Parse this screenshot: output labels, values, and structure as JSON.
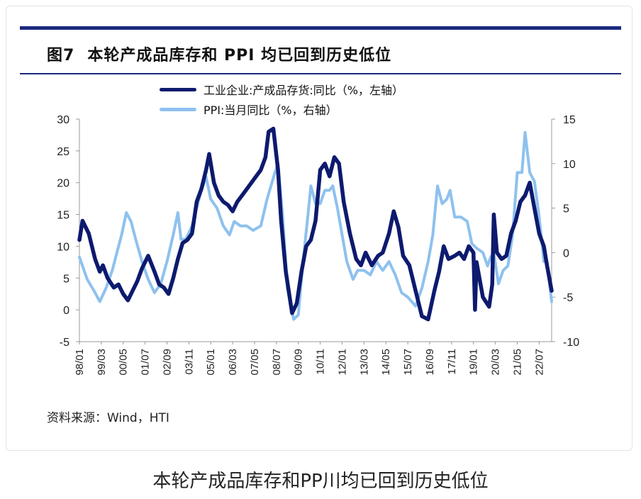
{
  "figure": {
    "number": "图7",
    "title": "本轮产成品库存和 PPI 均已回到历史低位",
    "source": "资料来源：Wind，HTI"
  },
  "caption": "本轮产成品库存和PP川均已回到历史低位",
  "colors": {
    "inventory": "#0d1a6e",
    "ppi": "#8ec1ee",
    "rule": "#1b2a7e"
  },
  "chart_data": {
    "type": "line",
    "x_tick_labels": [
      "98/01",
      "99/03",
      "00/05",
      "01/07",
      "02/09",
      "03/11",
      "05/01",
      "06/03",
      "07/05",
      "08/07",
      "09/09",
      "10/11",
      "12/01",
      "13/03",
      "14/05",
      "15/07",
      "16/09",
      "17/11",
      "19/01",
      "20/03",
      "21/05",
      "22/07"
    ],
    "x_range": [
      "1998-01",
      "2023-03"
    ],
    "y_left": {
      "ticks": [
        30,
        25,
        20,
        15,
        10,
        5,
        0,
        -5
      ],
      "range": [
        -5,
        30
      ]
    },
    "y_right": {
      "ticks": [
        15,
        10,
        5,
        0,
        -5,
        -10
      ],
      "range": [
        -10,
        15
      ]
    },
    "series": [
      {
        "name": "工业企业:产成品存货:同比（%，左轴）",
        "axis": "left",
        "points": [
          [
            "1998-01",
            11
          ],
          [
            "1998-03",
            14
          ],
          [
            "1998-07",
            12
          ],
          [
            "1998-11",
            8
          ],
          [
            "1999-02",
            6
          ],
          [
            "1999-04",
            7
          ],
          [
            "1999-07",
            5
          ],
          [
            "1999-11",
            3.5
          ],
          [
            "2000-02",
            4
          ],
          [
            "2000-05",
            2.5
          ],
          [
            "2000-08",
            1.5
          ],
          [
            "2000-11",
            3
          ],
          [
            "2001-02",
            4.5
          ],
          [
            "2001-05",
            6.5
          ],
          [
            "2001-09",
            8.5
          ],
          [
            "2002-01",
            6
          ],
          [
            "2002-04",
            4
          ],
          [
            "2002-07",
            3.5
          ],
          [
            "2002-10",
            2.5
          ],
          [
            "2003-01",
            5
          ],
          [
            "2003-04",
            8
          ],
          [
            "2003-07",
            10.5
          ],
          [
            "2003-10",
            11
          ],
          [
            "2004-01",
            12
          ],
          [
            "2004-04",
            17
          ],
          [
            "2004-07",
            19
          ],
          [
            "2004-10",
            22
          ],
          [
            "2004-12",
            24.5
          ],
          [
            "2005-03",
            20
          ],
          [
            "2005-06",
            18
          ],
          [
            "2005-09",
            17
          ],
          [
            "2005-12",
            16.5
          ],
          [
            "2006-03",
            15.5
          ],
          [
            "2006-06",
            17
          ],
          [
            "2006-09",
            18
          ],
          [
            "2006-12",
            19
          ],
          [
            "2007-03",
            20
          ],
          [
            "2007-06",
            21
          ],
          [
            "2007-09",
            22
          ],
          [
            "2007-12",
            24
          ],
          [
            "2008-02",
            28
          ],
          [
            "2008-05",
            28.5
          ],
          [
            "2008-08",
            22
          ],
          [
            "2008-10",
            14
          ],
          [
            "2009-01",
            6
          ],
          [
            "2009-05",
            -0.5
          ],
          [
            "2009-08",
            1
          ],
          [
            "2009-11",
            6
          ],
          [
            "2010-02",
            10
          ],
          [
            "2010-05",
            11
          ],
          [
            "2010-08",
            14
          ],
          [
            "2010-11",
            22
          ],
          [
            "2011-02",
            23
          ],
          [
            "2011-05",
            21
          ],
          [
            "2011-08",
            24
          ],
          [
            "2011-11",
            23
          ],
          [
            "2012-02",
            17
          ],
          [
            "2012-06",
            12
          ],
          [
            "2012-10",
            8
          ],
          [
            "2013-01",
            7
          ],
          [
            "2013-04",
            9
          ],
          [
            "2013-08",
            7
          ],
          [
            "2013-12",
            8.5
          ],
          [
            "2014-03",
            9
          ],
          [
            "2014-07",
            12
          ],
          [
            "2014-10",
            15.5
          ],
          [
            "2015-01",
            13
          ],
          [
            "2015-04",
            8.5
          ],
          [
            "2015-08",
            7
          ],
          [
            "2015-12",
            3
          ],
          [
            "2016-04",
            -1
          ],
          [
            "2016-08",
            -1.5
          ],
          [
            "2016-12",
            3
          ],
          [
            "2017-03",
            6
          ],
          [
            "2017-06",
            10
          ],
          [
            "2017-09",
            8
          ],
          [
            "2018-01",
            8.5
          ],
          [
            "2018-04",
            9
          ],
          [
            "2018-07",
            8
          ],
          [
            "2018-10",
            10
          ],
          [
            "2019-01",
            9
          ],
          [
            "2019-02",
            0
          ],
          [
            "2019-03",
            7.5
          ],
          [
            "2019-07",
            2
          ],
          [
            "2019-11",
            0.5
          ],
          [
            "2020-01",
            4
          ],
          [
            "2020-02",
            15
          ],
          [
            "2020-04",
            9
          ],
          [
            "2020-07",
            8
          ],
          [
            "2020-10",
            8.5
          ],
          [
            "2021-01",
            12
          ],
          [
            "2021-04",
            14
          ],
          [
            "2021-07",
            17
          ],
          [
            "2021-10",
            18
          ],
          [
            "2022-01",
            20
          ],
          [
            "2022-04",
            16
          ],
          [
            "2022-07",
            12
          ],
          [
            "2022-10",
            10
          ],
          [
            "2022-12",
            7
          ],
          [
            "2023-03",
            3
          ]
        ]
      },
      {
        "name": "PPI:当月同比（%，右轴）",
        "axis": "right",
        "points": [
          [
            "1998-01",
            -0.5
          ],
          [
            "1998-06",
            -3
          ],
          [
            "1998-11",
            -4.5
          ],
          [
            "1999-02",
            -5.5
          ],
          [
            "1999-06",
            -4
          ],
          [
            "1999-10",
            -2
          ],
          [
            "2000-01",
            0
          ],
          [
            "2000-04",
            2
          ],
          [
            "2000-07",
            4.5
          ],
          [
            "2000-10",
            3.5
          ],
          [
            "2001-01",
            1.5
          ],
          [
            "2001-05",
            -1
          ],
          [
            "2001-09",
            -3
          ],
          [
            "2002-01",
            -4.5
          ],
          [
            "2002-05",
            -3.5
          ],
          [
            "2002-09",
            -1
          ],
          [
            "2003-01",
            2
          ],
          [
            "2003-04",
            4.5
          ],
          [
            "2003-06",
            1.5
          ],
          [
            "2003-09",
            1.5
          ],
          [
            "2004-01",
            3
          ],
          [
            "2004-04",
            5
          ],
          [
            "2004-07",
            7
          ],
          [
            "2004-10",
            8.5
          ],
          [
            "2005-01",
            6
          ],
          [
            "2005-05",
            5
          ],
          [
            "2005-09",
            3
          ],
          [
            "2006-01",
            2
          ],
          [
            "2006-04",
            3.5
          ],
          [
            "2006-08",
            3
          ],
          [
            "2006-12",
            3
          ],
          [
            "2007-04",
            2.5
          ],
          [
            "2007-09",
            3
          ],
          [
            "2008-01",
            6
          ],
          [
            "2008-06",
            9
          ],
          [
            "2008-08",
            10
          ],
          [
            "2008-11",
            4
          ],
          [
            "2009-02",
            -4
          ],
          [
            "2009-06",
            -7.5
          ],
          [
            "2009-09",
            -7
          ],
          [
            "2009-12",
            -1
          ],
          [
            "2010-03",
            4
          ],
          [
            "2010-05",
            7.5
          ],
          [
            "2010-08",
            5.5
          ],
          [
            "2010-11",
            5.5
          ],
          [
            "2011-02",
            7
          ],
          [
            "2011-05",
            7
          ],
          [
            "2011-07",
            7.5
          ],
          [
            "2011-10",
            5
          ],
          [
            "2012-01",
            2
          ],
          [
            "2012-04",
            -1
          ],
          [
            "2012-08",
            -3
          ],
          [
            "2012-11",
            -2
          ],
          [
            "2013-03",
            -2
          ],
          [
            "2013-07",
            -2.5
          ],
          [
            "2013-11",
            -1
          ],
          [
            "2014-03",
            -2
          ],
          [
            "2014-07",
            -1
          ],
          [
            "2014-11",
            -2.5
          ],
          [
            "2015-03",
            -4.5
          ],
          [
            "2015-07",
            -5
          ],
          [
            "2015-12",
            -6
          ],
          [
            "2016-04",
            -4
          ],
          [
            "2016-08",
            -1
          ],
          [
            "2016-11",
            2
          ],
          [
            "2017-02",
            7.5
          ],
          [
            "2017-05",
            5.5
          ],
          [
            "2017-08",
            6
          ],
          [
            "2017-10",
            7
          ],
          [
            "2018-01",
            4
          ],
          [
            "2018-05",
            4
          ],
          [
            "2018-09",
            3.5
          ],
          [
            "2018-12",
            1
          ],
          [
            "2019-03",
            0.5
          ],
          [
            "2019-07",
            0
          ],
          [
            "2019-10",
            -1.5
          ],
          [
            "2019-12",
            -0.5
          ],
          [
            "2020-02",
            0
          ],
          [
            "2020-05",
            -3.5
          ],
          [
            "2020-08",
            -2
          ],
          [
            "2020-11",
            -1.5
          ],
          [
            "2021-02",
            2
          ],
          [
            "2021-05",
            9
          ],
          [
            "2021-08",
            9
          ],
          [
            "2021-10",
            13.5
          ],
          [
            "2022-01",
            9
          ],
          [
            "2022-04",
            8
          ],
          [
            "2022-07",
            4
          ],
          [
            "2022-10",
            -1
          ],
          [
            "2022-12",
            -1
          ],
          [
            "2023-03",
            -5.5
          ]
        ]
      }
    ]
  }
}
